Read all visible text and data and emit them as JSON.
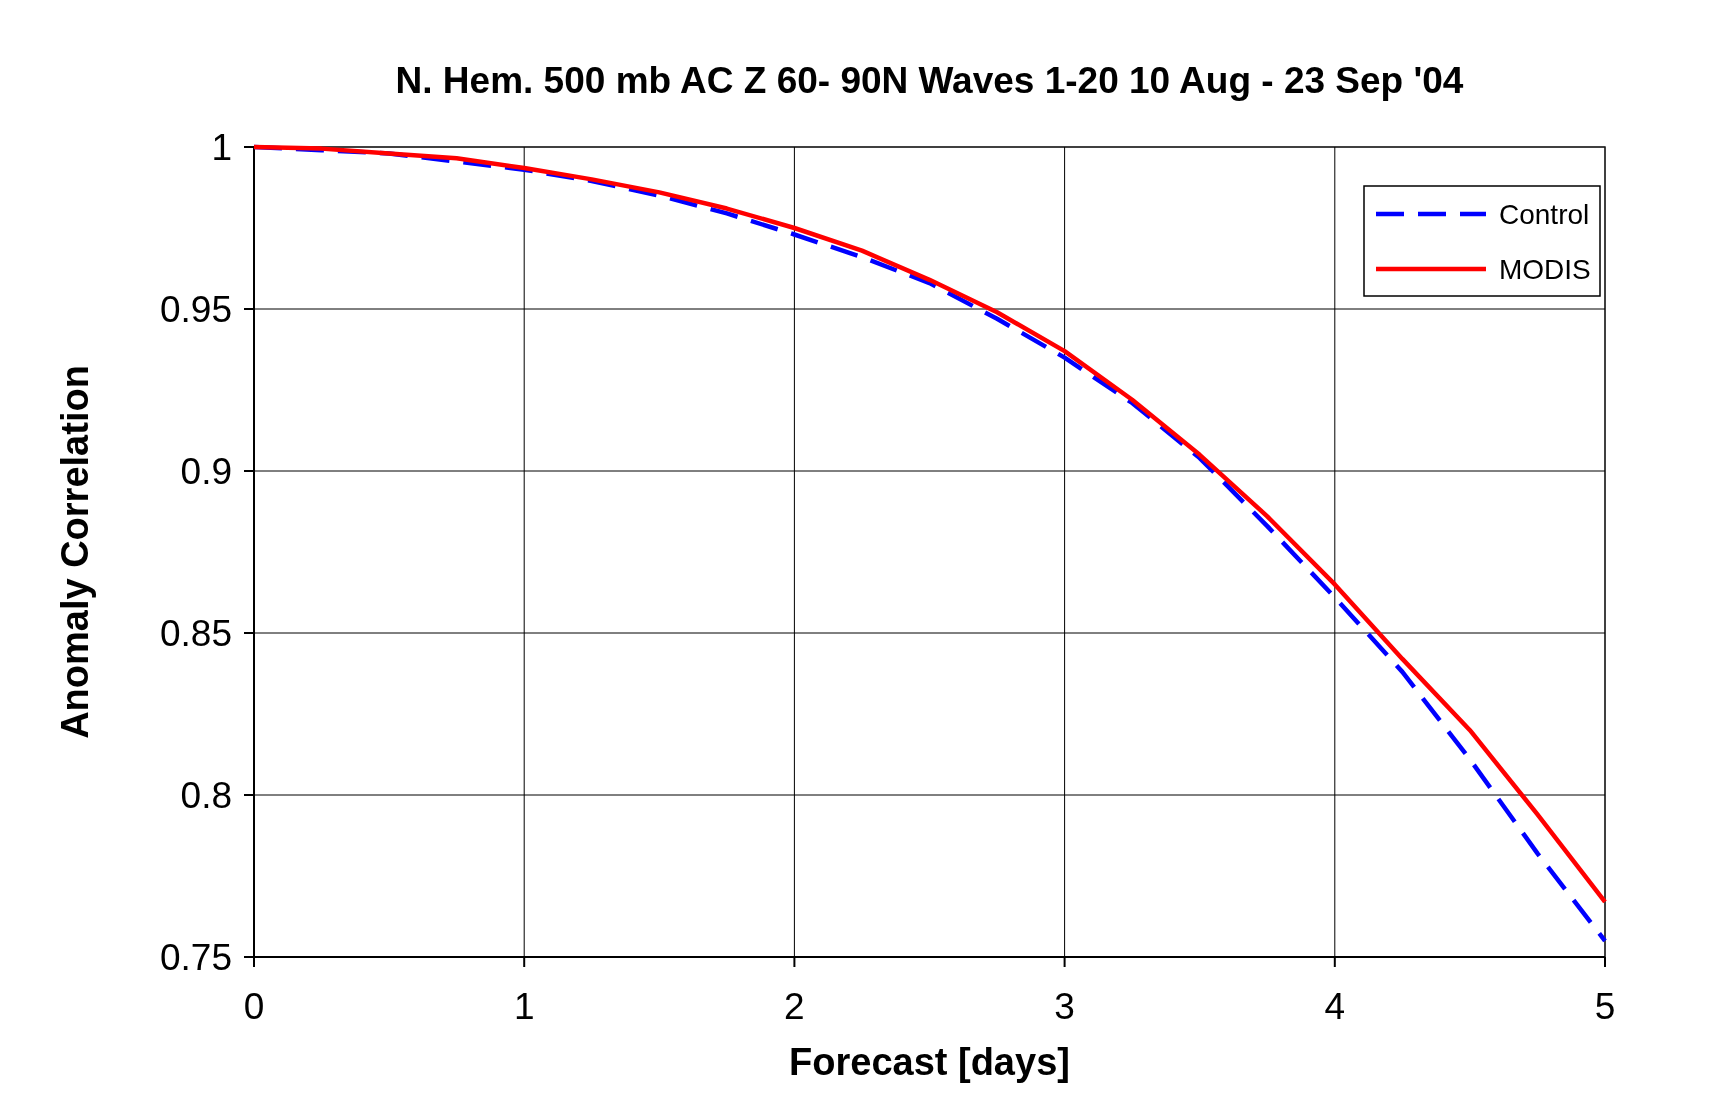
{
  "chart_data": {
    "type": "line",
    "title": "N. Hem. 500 mb AC Z  60- 90N Waves 1-20 10 Aug - 23 Sep '04",
    "xlabel": "Forecast [days]",
    "ylabel": "Anomaly Correlation",
    "x": [
      0,
      0.25,
      0.5,
      0.75,
      1,
      1.25,
      1.5,
      1.75,
      2,
      2.25,
      2.5,
      2.75,
      3,
      3.25,
      3.5,
      3.75,
      4,
      4.25,
      4.5,
      4.75,
      5
    ],
    "series": [
      {
        "name": "Control",
        "color": "#0000ff",
        "line_style": "dashed",
        "values": [
          1,
          0.999,
          0.998,
          0.9955,
          0.993,
          0.9895,
          0.985,
          0.9795,
          0.973,
          0.966,
          0.958,
          0.947,
          0.935,
          0.921,
          0.904,
          0.883,
          0.861,
          0.838,
          0.811,
          0.782,
          0.755
        ]
      },
      {
        "name": "MODIS",
        "color": "#ff0000",
        "line_style": "solid",
        "values": [
          1,
          0.9995,
          0.998,
          0.9965,
          0.9935,
          0.99,
          0.986,
          0.981,
          0.975,
          0.968,
          0.959,
          0.949,
          0.937,
          0.922,
          0.905,
          0.886,
          0.865,
          0.842,
          0.82,
          0.794,
          0.767
        ]
      }
    ],
    "xlim": [
      0,
      5
    ],
    "xticks": [
      0,
      1,
      2,
      3,
      4,
      5
    ],
    "ylim": [
      0.75,
      1
    ],
    "yticks": [
      0.75,
      0.8,
      0.85,
      0.9,
      0.95,
      1
    ],
    "grid": true,
    "legend": "top right"
  }
}
